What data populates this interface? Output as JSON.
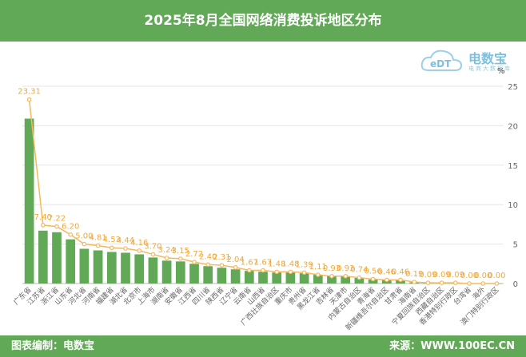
{
  "header": {
    "title": "2025年8月全国网络消费投诉地区分布"
  },
  "footer": {
    "left": "图表编制：电数宝",
    "right": "来源：WWW.100EC.CN"
  },
  "watermark": {
    "logo_text": "eDT",
    "brand": "电数宝",
    "sub": "电商大数据库"
  },
  "colors": {
    "header": "#62a957",
    "bar": "#62a957",
    "line": "#f5b85c",
    "label": "#f0a93c",
    "axis_text": "#666666"
  },
  "chart_data": {
    "type": "bar",
    "unit": "%",
    "ylim": [
      0,
      25
    ],
    "yticks": [
      0,
      5,
      10,
      15,
      20,
      25
    ],
    "categories": [
      "广东省",
      "江苏省",
      "浙江省",
      "山东省",
      "河北省",
      "河南省",
      "福建省",
      "湖北省",
      "北京市",
      "上海市",
      "湖南省",
      "安徽省",
      "江西省",
      "四川省",
      "陕西省",
      "辽宁省",
      "云南省",
      "山西省",
      "广西壮族自治区",
      "重庆市",
      "贵州省",
      "黑龙江省",
      "吉林省",
      "天津市",
      "内蒙古自治区",
      "青海省",
      "新疆维吾尔自治区",
      "甘肃省",
      "海南省",
      "宁夏回族自治区",
      "西藏自治区",
      "香港特别行政区",
      "台湾省",
      "海外",
      "澳门特别行政区"
    ],
    "bar_values": [
      20.9,
      6.7,
      6.5,
      5.6,
      4.4,
      4.2,
      4.0,
      3.9,
      3.7,
      3.3,
      2.9,
      2.8,
      2.5,
      2.2,
      2.0,
      1.8,
      1.6,
      1.5,
      1.4,
      1.4,
      1.3,
      1.1,
      0.95,
      0.9,
      0.7,
      0.5,
      0.44,
      0.42,
      0.15,
      0.09,
      0.06,
      0.05,
      0.03,
      0.02,
      0.01
    ],
    "line_values": [
      23.31,
      7.4,
      7.22,
      6.2,
      5.0,
      4.81,
      4.53,
      4.44,
      4.16,
      3.7,
      3.24,
      3.15,
      2.72,
      2.4,
      2.31,
      2.04,
      1.67,
      1.67,
      1.48,
      1.48,
      1.39,
      1.11,
      0.93,
      0.93,
      0.74,
      0.56,
      0.46,
      0.46,
      0.19,
      0.09,
      0.09,
      0.09,
      0.0,
      0.0,
      0.0
    ],
    "line_labels": [
      "23.31",
      "7.40",
      "7.22",
      "6.20",
      "5.00",
      "4.81",
      "4.53",
      "4.44",
      "4.16",
      "3.70",
      "3.24",
      "3.15",
      "2.72",
      "2.40",
      "2.31",
      "2.04",
      "1.67",
      "1.67",
      "1.48",
      "1.48",
      "1.39",
      "1.11",
      "0.93",
      "0.93",
      "0.74",
      "0.56",
      "0.46",
      "0.46",
      "0.19",
      "0.09",
      "0.09",
      "0.09",
      "0.00",
      "0.00",
      "0.00"
    ],
    "grid": true,
    "legend": "none"
  }
}
